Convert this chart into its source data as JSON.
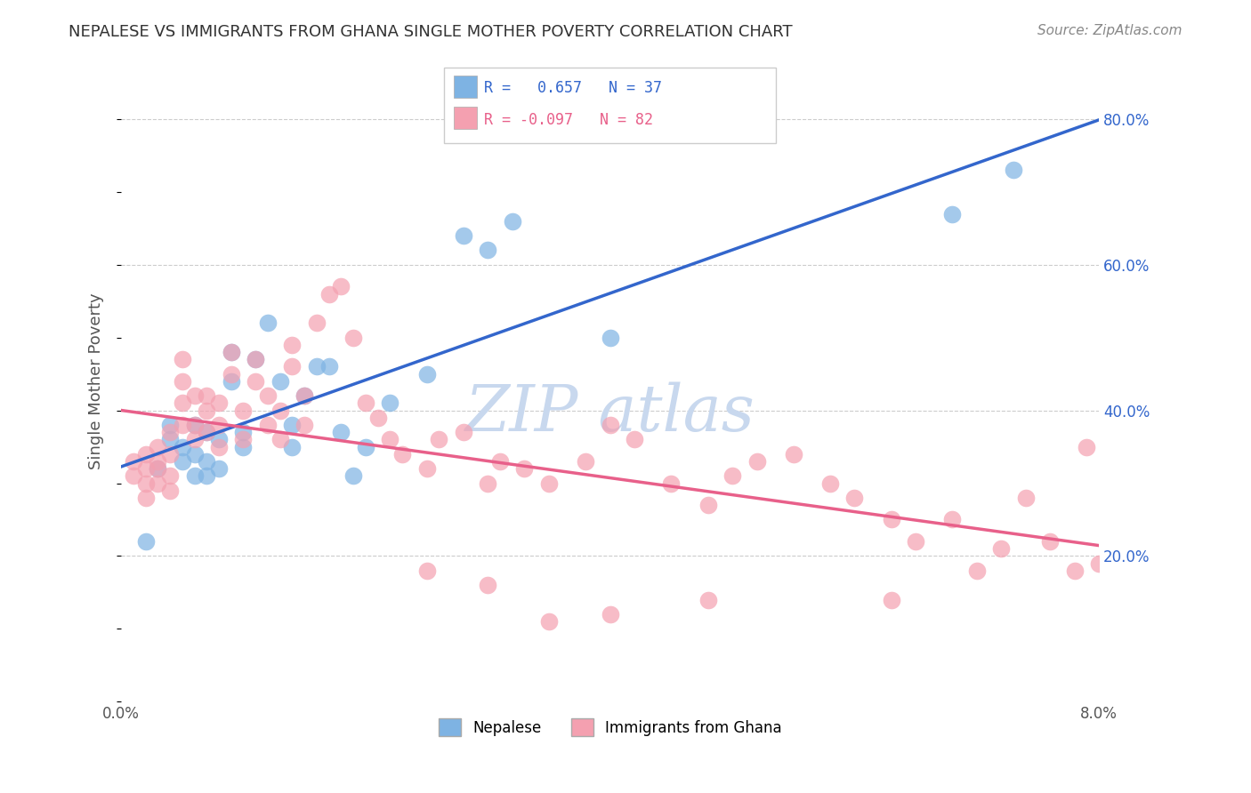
{
  "title": "NEPALESE VS IMMIGRANTS FROM GHANA SINGLE MOTHER POVERTY CORRELATION CHART",
  "source": "Source: ZipAtlas.com",
  "ylabel": "Single Mother Poverty",
  "xlim": [
    0.0,
    0.08
  ],
  "ylim": [
    0.0,
    0.88
  ],
  "xticks": [
    0.0,
    0.01,
    0.02,
    0.03,
    0.04,
    0.05,
    0.06,
    0.07,
    0.08
  ],
  "xticklabels": [
    "0.0%",
    "",
    "",
    "",
    "",
    "",
    "",
    "",
    "8.0%"
  ],
  "yticks_right": [
    0.2,
    0.4,
    0.6,
    0.8
  ],
  "ytick_labels_right": [
    "20.0%",
    "40.0%",
    "60.0%",
    "80.0%"
  ],
  "blue_color": "#7EB3E3",
  "pink_color": "#F4A0B0",
  "blue_line_color": "#3366CC",
  "pink_line_color": "#E8608A",
  "watermark_color": "#C8D8EE",
  "legend_r_blue": "0.657",
  "legend_n_blue": "37",
  "legend_r_pink": "-0.097",
  "legend_n_pink": "82",
  "blue_scatter_x": [
    0.002,
    0.003,
    0.004,
    0.004,
    0.005,
    0.005,
    0.006,
    0.006,
    0.006,
    0.007,
    0.007,
    0.007,
    0.008,
    0.008,
    0.009,
    0.009,
    0.01,
    0.01,
    0.011,
    0.012,
    0.013,
    0.014,
    0.014,
    0.015,
    0.016,
    0.017,
    0.018,
    0.019,
    0.02,
    0.022,
    0.025,
    0.028,
    0.03,
    0.032,
    0.04,
    0.068,
    0.073
  ],
  "blue_scatter_y": [
    0.22,
    0.32,
    0.36,
    0.38,
    0.33,
    0.35,
    0.31,
    0.34,
    0.38,
    0.31,
    0.33,
    0.37,
    0.32,
    0.36,
    0.44,
    0.48,
    0.35,
    0.37,
    0.47,
    0.52,
    0.44,
    0.35,
    0.38,
    0.42,
    0.46,
    0.46,
    0.37,
    0.31,
    0.35,
    0.41,
    0.45,
    0.64,
    0.62,
    0.66,
    0.5,
    0.67,
    0.73
  ],
  "pink_scatter_x": [
    0.001,
    0.001,
    0.002,
    0.002,
    0.002,
    0.002,
    0.003,
    0.003,
    0.003,
    0.003,
    0.004,
    0.004,
    0.004,
    0.004,
    0.005,
    0.005,
    0.005,
    0.005,
    0.006,
    0.006,
    0.006,
    0.007,
    0.007,
    0.007,
    0.008,
    0.008,
    0.008,
    0.009,
    0.009,
    0.01,
    0.01,
    0.011,
    0.011,
    0.012,
    0.012,
    0.013,
    0.013,
    0.014,
    0.014,
    0.015,
    0.015,
    0.016,
    0.017,
    0.018,
    0.019,
    0.02,
    0.021,
    0.022,
    0.023,
    0.025,
    0.026,
    0.028,
    0.03,
    0.031,
    0.033,
    0.035,
    0.038,
    0.04,
    0.042,
    0.045,
    0.048,
    0.05,
    0.052,
    0.055,
    0.058,
    0.06,
    0.063,
    0.065,
    0.068,
    0.07,
    0.072,
    0.074,
    0.076,
    0.078,
    0.079,
    0.08,
    0.063,
    0.048,
    0.04,
    0.035,
    0.03,
    0.025
  ],
  "pink_scatter_y": [
    0.33,
    0.31,
    0.32,
    0.34,
    0.3,
    0.28,
    0.35,
    0.32,
    0.3,
    0.33,
    0.37,
    0.34,
    0.31,
    0.29,
    0.38,
    0.41,
    0.44,
    0.47,
    0.36,
    0.38,
    0.42,
    0.37,
    0.4,
    0.42,
    0.35,
    0.38,
    0.41,
    0.45,
    0.48,
    0.36,
    0.4,
    0.44,
    0.47,
    0.38,
    0.42,
    0.36,
    0.4,
    0.46,
    0.49,
    0.38,
    0.42,
    0.52,
    0.56,
    0.57,
    0.5,
    0.41,
    0.39,
    0.36,
    0.34,
    0.32,
    0.36,
    0.37,
    0.3,
    0.33,
    0.32,
    0.3,
    0.33,
    0.38,
    0.36,
    0.3,
    0.27,
    0.31,
    0.33,
    0.34,
    0.3,
    0.28,
    0.25,
    0.22,
    0.25,
    0.18,
    0.21,
    0.28,
    0.22,
    0.18,
    0.35,
    0.19,
    0.14,
    0.14,
    0.12,
    0.11,
    0.16,
    0.18
  ]
}
